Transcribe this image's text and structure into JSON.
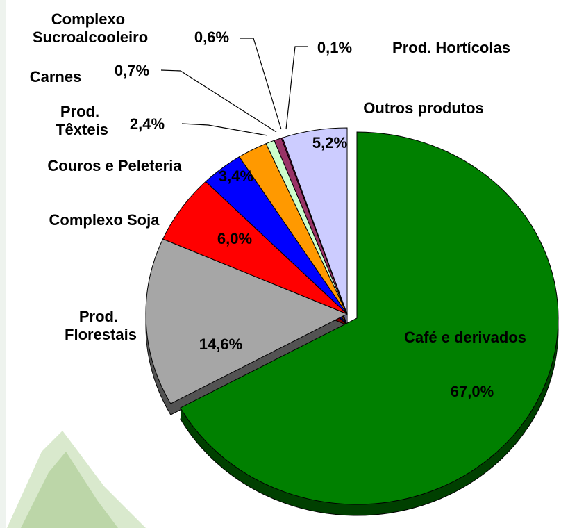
{
  "chart_data": {
    "type": "pie",
    "categories": [
      "Café e derivados",
      "Prod. Florestais",
      "Complexo Soja",
      "Couros e Peleteria",
      "Prod. Têxteis",
      "Carnes",
      "Complexo Sucroalcooleiro",
      "Prod. Hortícolas",
      "Outros produtos"
    ],
    "values": [
      67.0,
      14.6,
      6.0,
      3.4,
      2.4,
      0.7,
      0.6,
      0.1,
      5.2
    ],
    "value_labels": [
      "67,0%",
      "14,6%",
      "6,0%",
      "3,4%",
      "2,4%",
      "0,7%",
      "0,6%",
      "0,1%",
      "5,2%"
    ],
    "colors": [
      "#008000",
      "#a6a6a6",
      "#ff0000",
      "#0000ff",
      "#ff9900",
      "#ccffcc",
      "#993366",
      "#800040",
      "#ccccff"
    ]
  }
}
